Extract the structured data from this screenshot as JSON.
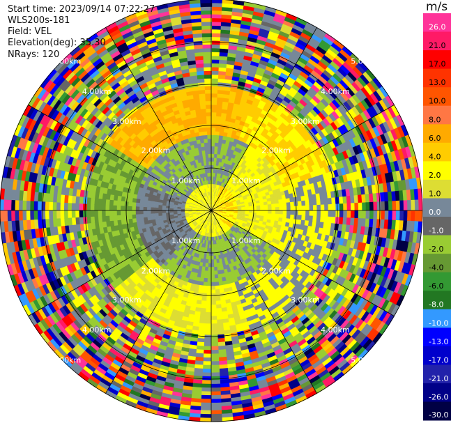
{
  "header": {
    "start_time": "Start time: 2023/09/14 07:22:27",
    "instrument": "WLS200s-181",
    "field": "Field: VEL",
    "elevation": "Elevation(deg): 35.30",
    "nrays": "NRays: 120"
  },
  "chart_data": {
    "type": "heatmap",
    "projection": "polar PPI",
    "field": "VEL",
    "units": "m/s",
    "nrays": 120,
    "range_ring_labels": [
      "1.00km",
      "2.00km",
      "3.00km",
      "4.00km",
      "5.00km"
    ],
    "colorbar": {
      "title": "m/s",
      "ticks": [
        "26.0",
        "21.0",
        "17.0",
        "13.0",
        "10.0",
        "8.0",
        "6.0",
        "4.0",
        "2.0",
        "1.0",
        "0.0",
        "-1.0",
        "-2.0",
        "-4.0",
        "-6.0",
        "-8.0",
        "-10.0",
        "-13.0",
        "-17.0",
        "-21.0",
        "-26.0",
        "-30.0"
      ],
      "colors": [
        "#ff3399",
        "#ff1a66",
        "#ff0000",
        "#ff3300",
        "#ff5500",
        "#ff7744",
        "#ffaa00",
        "#ffcc00",
        "#ffff00",
        "#dddd33",
        "#778899",
        "#666666",
        "#99cc33",
        "#669933",
        "#339933",
        "#227722",
        "#3399ff",
        "#0000ff",
        "#0000cc",
        "#2222aa",
        "#000088",
        "#000044"
      ]
    }
  }
}
